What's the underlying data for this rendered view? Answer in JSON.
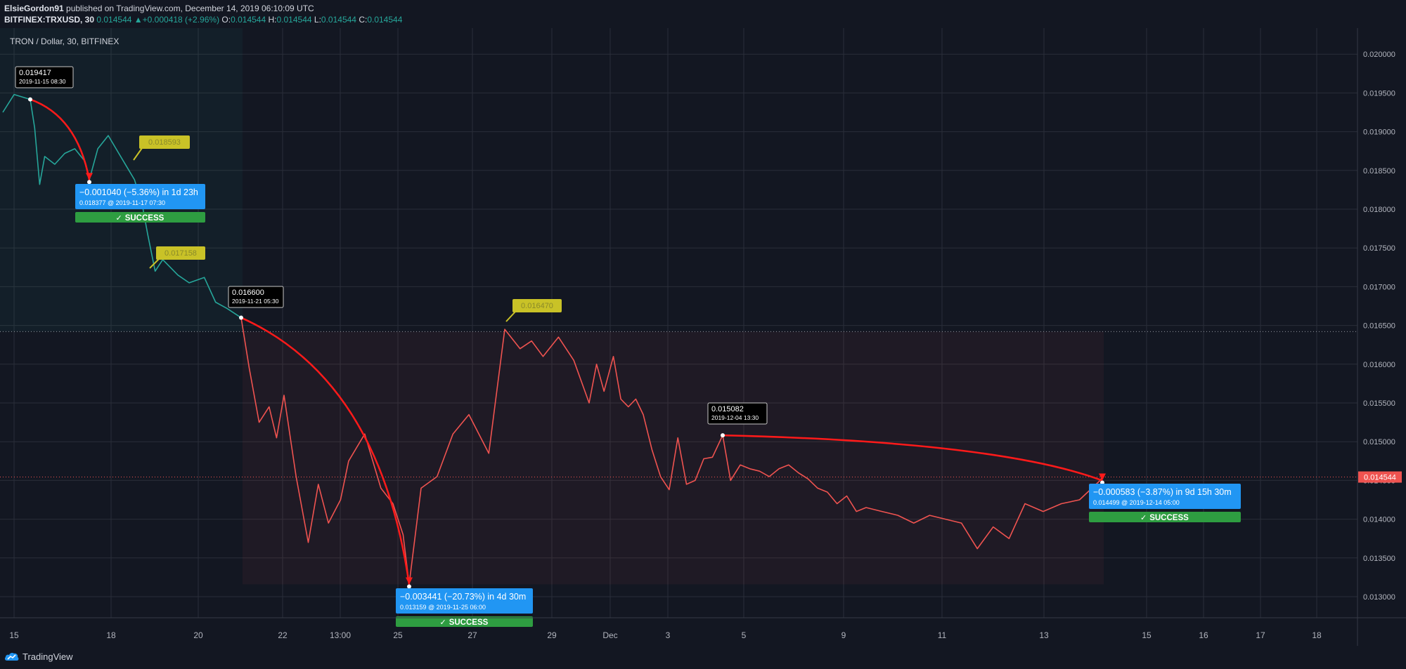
{
  "header": {
    "author": "ElsieGordon91",
    "published_text": " published on TradingView.com, December 14, 2019 06:10:09 UTC",
    "symbol": "BITFINEX:TRXUSD, 30",
    "last": "0.014544",
    "change": "+0.000418 (+2.96%)",
    "ohlc": [
      {
        "label": "O:",
        "value": "0.014544"
      },
      {
        "label": "H:",
        "value": "0.014544"
      },
      {
        "label": "L:",
        "value": "0.014544"
      },
      {
        "label": "C:",
        "value": "0.014544"
      }
    ]
  },
  "chart_title": "TRON / Dollar, 30, BITFINEX",
  "footer": {
    "brand": "TradingView"
  },
  "colors": {
    "background": "#131722",
    "grid": "#2a2e39",
    "up_line": "#26a69a",
    "down_line": "#ef5350",
    "arrow": "#ff1a1a",
    "label_blue": "#2196f3",
    "label_green": "#2e9d41",
    "label_yellow": "#c9c227",
    "price_tag": "#ef5350"
  },
  "chart_data": {
    "type": "line",
    "title": "TRON / Dollar, 30, BITFINEX",
    "ylim": [
      0.0127,
      0.0205
    ],
    "y_ticks": [
      0.013,
      0.0135,
      0.014,
      0.0145,
      0.015,
      0.0155,
      0.016,
      0.0165,
      0.017,
      0.0175,
      0.018,
      0.0185,
      0.019,
      0.0195,
      0.02
    ],
    "y_tick_labels": [
      "0.013000",
      "0.013500",
      "0.014000",
      "0.014500",
      "0.015000",
      "0.015500",
      "0.016000",
      "0.016500",
      "0.017000",
      "0.017500",
      "0.018000",
      "0.018500",
      "0.019000",
      "0.019500",
      "0.020000"
    ],
    "x_ticks": [
      "15",
      "18",
      "20",
      "22",
      "13:00",
      "25",
      "27",
      "29",
      "Dec",
      "3",
      "5",
      "9",
      "11",
      "13",
      "15",
      "16",
      "17",
      "18"
    ],
    "grid": true,
    "current_price": 0.014544,
    "current_price_label": "0.014544",
    "dotted_level": 0.01642,
    "series": [
      {
        "color": "#26a69a",
        "x": [
          "2019-11-14 18:00",
          "2019-11-15 00:00",
          "2019-11-15 08:30",
          "2019-11-15 12:00",
          "2019-11-15 16:00",
          "2019-11-15 20:00",
          "2019-11-16 04:00",
          "2019-11-16 12:00",
          "2019-11-16 20:00",
          "2019-11-17 04:00",
          "2019-11-17 07:30",
          "2019-11-17 14:00",
          "2019-11-17 22:00",
          "2019-11-18 06:00",
          "2019-11-18 12:00",
          "2019-11-18 18:00",
          "2019-11-19 00:00",
          "2019-11-19 04:00",
          "2019-11-19 08:00",
          "2019-11-19 12:00",
          "2019-11-19 20:00",
          "2019-11-20 02:00",
          "2019-11-20 10:00",
          "2019-11-20 16:00",
          "2019-11-20 22:00",
          "2019-11-21 05:30"
        ],
        "y": [
          0.01925,
          0.01948,
          0.019417,
          0.01905,
          0.01832,
          0.01868,
          0.01858,
          0.01872,
          0.01878,
          0.01862,
          0.018377,
          0.01878,
          0.01895,
          0.01872,
          0.01855,
          0.01838,
          0.01805,
          0.01768,
          0.0172,
          0.01735,
          0.01715,
          0.01705,
          0.01712,
          0.0168,
          0.01672,
          0.0166
        ]
      },
      {
        "color": "#ef5350",
        "x": [
          "2019-11-21 05:30",
          "2019-11-21 12:00",
          "2019-11-21 20:00",
          "2019-11-22 04:00",
          "2019-11-22 10:00",
          "2019-11-22 16:00",
          "2019-11-22 22:00",
          "2019-11-23 04:00",
          "2019-11-23 09:00",
          "2019-11-23 14:00",
          "2019-11-23 20:00",
          "2019-11-24 00:00",
          "2019-11-24 08:00",
          "2019-11-24 16:00",
          "2019-11-24 22:00",
          "2019-11-25 03:00",
          "2019-11-25 06:00",
          "2019-11-25 12:00",
          "2019-11-25 20:00",
          "2019-11-26 04:00",
          "2019-11-26 12:00",
          "2019-11-26 22:00",
          "2019-11-27 06:00",
          "2019-11-27 14:00",
          "2019-11-27 20:00",
          "2019-11-28 02:00",
          "2019-11-28 10:00",
          "2019-11-28 18:00",
          "2019-11-29 02:00",
          "2019-11-29 10:00",
          "2019-11-29 18:00",
          "2019-11-30 04:00",
          "2019-11-30 12:00",
          "2019-11-30 20:00",
          "2019-12-01 04:00",
          "2019-12-01 12:00",
          "2019-12-01 20:00",
          "2019-12-02 04:00",
          "2019-12-02 12:00",
          "2019-12-02 20:00",
          "2019-12-03 04:00",
          "2019-12-03 12:00",
          "2019-12-03 20:00",
          "2019-12-04 04:00",
          "2019-12-04 13:30",
          "2019-12-04 20:00",
          "2019-12-05 04:00",
          "2019-12-05 12:00",
          "2019-12-05 20:00",
          "2019-12-06 04:00",
          "2019-12-06 12:00",
          "2019-12-06 20:00",
          "2019-12-07 04:00",
          "2019-12-07 12:00",
          "2019-12-07 20:00",
          "2019-12-08 04:00",
          "2019-12-08 12:00",
          "2019-12-08 20:00",
          "2019-12-09 04:00",
          "2019-12-09 12:00",
          "2019-12-09 20:00",
          "2019-12-10 04:00",
          "2019-12-10 12:00",
          "2019-12-10 20:00",
          "2019-12-11 04:00",
          "2019-12-11 12:00",
          "2019-12-11 20:00",
          "2019-12-12 04:00",
          "2019-12-12 12:00",
          "2019-12-12 20:00",
          "2019-12-13 04:00",
          "2019-12-13 12:00",
          "2019-12-13 20:00",
          "2019-12-14 05:00",
          "2019-12-14 06:00"
        ],
        "y": [
          0.0166,
          0.01595,
          0.01525,
          0.01545,
          0.01505,
          0.0156,
          0.01455,
          0.0137,
          0.01445,
          0.01395,
          0.01425,
          0.01475,
          0.0151,
          0.0144,
          0.0142,
          0.0138,
          0.013159,
          0.0144,
          0.01455,
          0.0151,
          0.01535,
          0.01485,
          0.01645,
          0.0162,
          0.0163,
          0.0161,
          0.01635,
          0.01605,
          0.0155,
          0.016,
          0.01565,
          0.0161,
          0.01555,
          0.01545,
          0.01555,
          0.01535,
          0.0149,
          0.01455,
          0.01438,
          0.01505,
          0.01445,
          0.0145,
          0.01478,
          0.0148,
          0.015082,
          0.0145,
          0.0147,
          0.01465,
          0.01462,
          0.01455,
          0.01465,
          0.0147,
          0.0146,
          0.01452,
          0.0144,
          0.01435,
          0.0142,
          0.0143,
          0.0141,
          0.01415,
          0.0141,
          0.01405,
          0.01395,
          0.01405,
          0.014,
          0.01395,
          0.01362,
          0.0139,
          0.01375,
          0.0142,
          0.0141,
          0.0142,
          0.01425,
          0.014499,
          0.014544
        ]
      }
    ],
    "annotations": {
      "high_labels": [
        {
          "price": "0.019417",
          "time": "2019-11-15 08:30"
        },
        {
          "price": "0.016600",
          "time": "2019-11-21 05:30"
        },
        {
          "price": "0.015082",
          "time": "2019-12-04 13:30"
        }
      ],
      "yellow_labels": [
        "0.018593",
        "0.017158",
        "0.016470"
      ],
      "measures": [
        {
          "line1": "−0.001040 (−5.36%) in 1d 23h",
          "line2": "0.018377 @ 2019-11-17  07:30",
          "status": "SUCCESS"
        },
        {
          "line1": "−0.003441 (−20.73%) in 4d 30m",
          "line2": "0.013159 @ 2019-11-25  06:00",
          "status": "SUCCESS"
        },
        {
          "line1": "−0.000583 (−3.87%) in 9d 15h 30m",
          "line2": "0.014499 @ 2019-12-14  05:00",
          "status": "SUCCESS"
        }
      ]
    }
  }
}
